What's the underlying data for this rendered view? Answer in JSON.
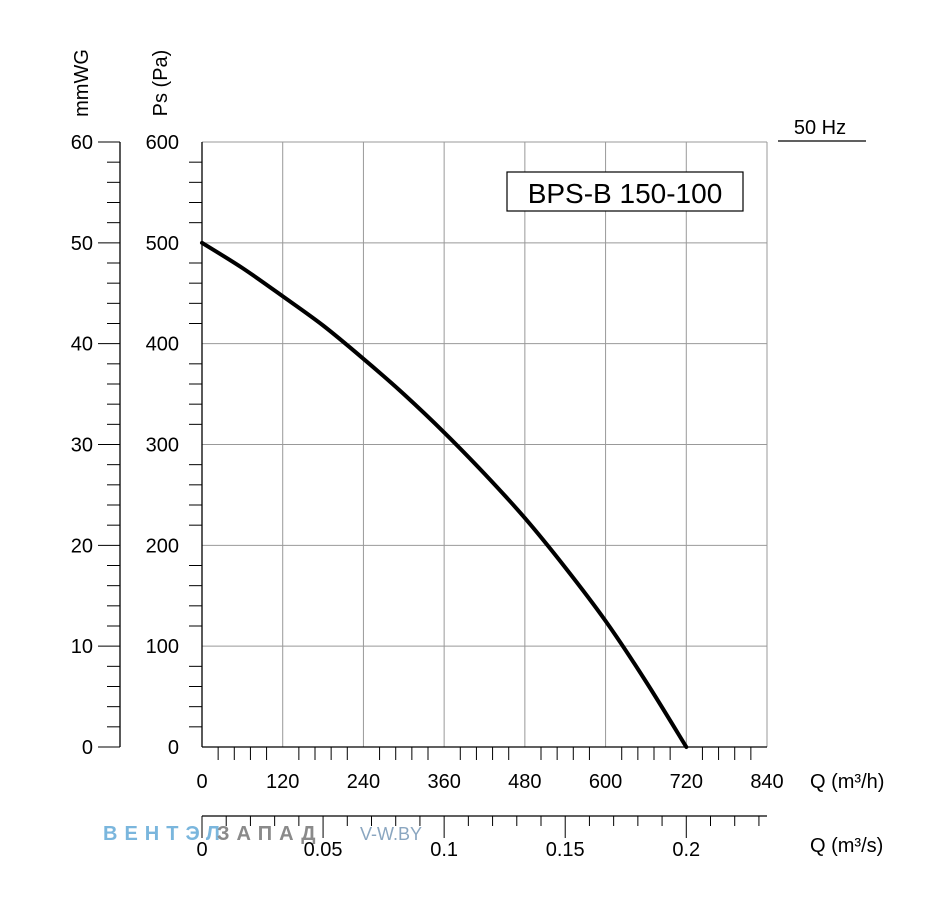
{
  "chart_data": {
    "type": "line",
    "title": "BPS-B 150-100",
    "frequency_label": "50 Hz",
    "left_axis_label": "mmWG",
    "ylabel": "Ps (Pa)",
    "xlabel": "Q (m³/h)",
    "secondary_xlabel": "Q (m³/s)",
    "xlim": [
      0,
      840
    ],
    "ylim": [
      0,
      600
    ],
    "mmwg_lim": [
      0,
      60
    ],
    "x_ticks": [
      "0",
      "120",
      "240",
      "360",
      "480",
      "600",
      "720",
      "840"
    ],
    "y_ticks": [
      "0",
      "100",
      "200",
      "300",
      "400",
      "500",
      "600"
    ],
    "mmwg_ticks": [
      "0",
      "10",
      "20",
      "30",
      "40",
      "50",
      "60"
    ],
    "secondary_x_ticks": [
      "0",
      "0.05",
      "0.1",
      "0.15",
      "0.2"
    ],
    "grid": true,
    "series": [
      {
        "x": [
          0,
          60,
          120,
          180,
          240,
          300,
          360,
          420,
          480,
          540,
          600,
          660,
          720
        ],
        "y": [
          500,
          475,
          447,
          418,
          385,
          350,
          312,
          271,
          227,
          178,
          125,
          65,
          0
        ]
      }
    ]
  },
  "watermark": {
    "brand_part1": "ВЕНТЭЛ",
    "brand_part2": "ЗАПАД",
    "site": "V-W.BY"
  },
  "colors": {
    "curve": "#000000",
    "grid": "#999999",
    "watermark_blue": "#7ab6dd",
    "watermark_gray": "#8a8a8a"
  }
}
